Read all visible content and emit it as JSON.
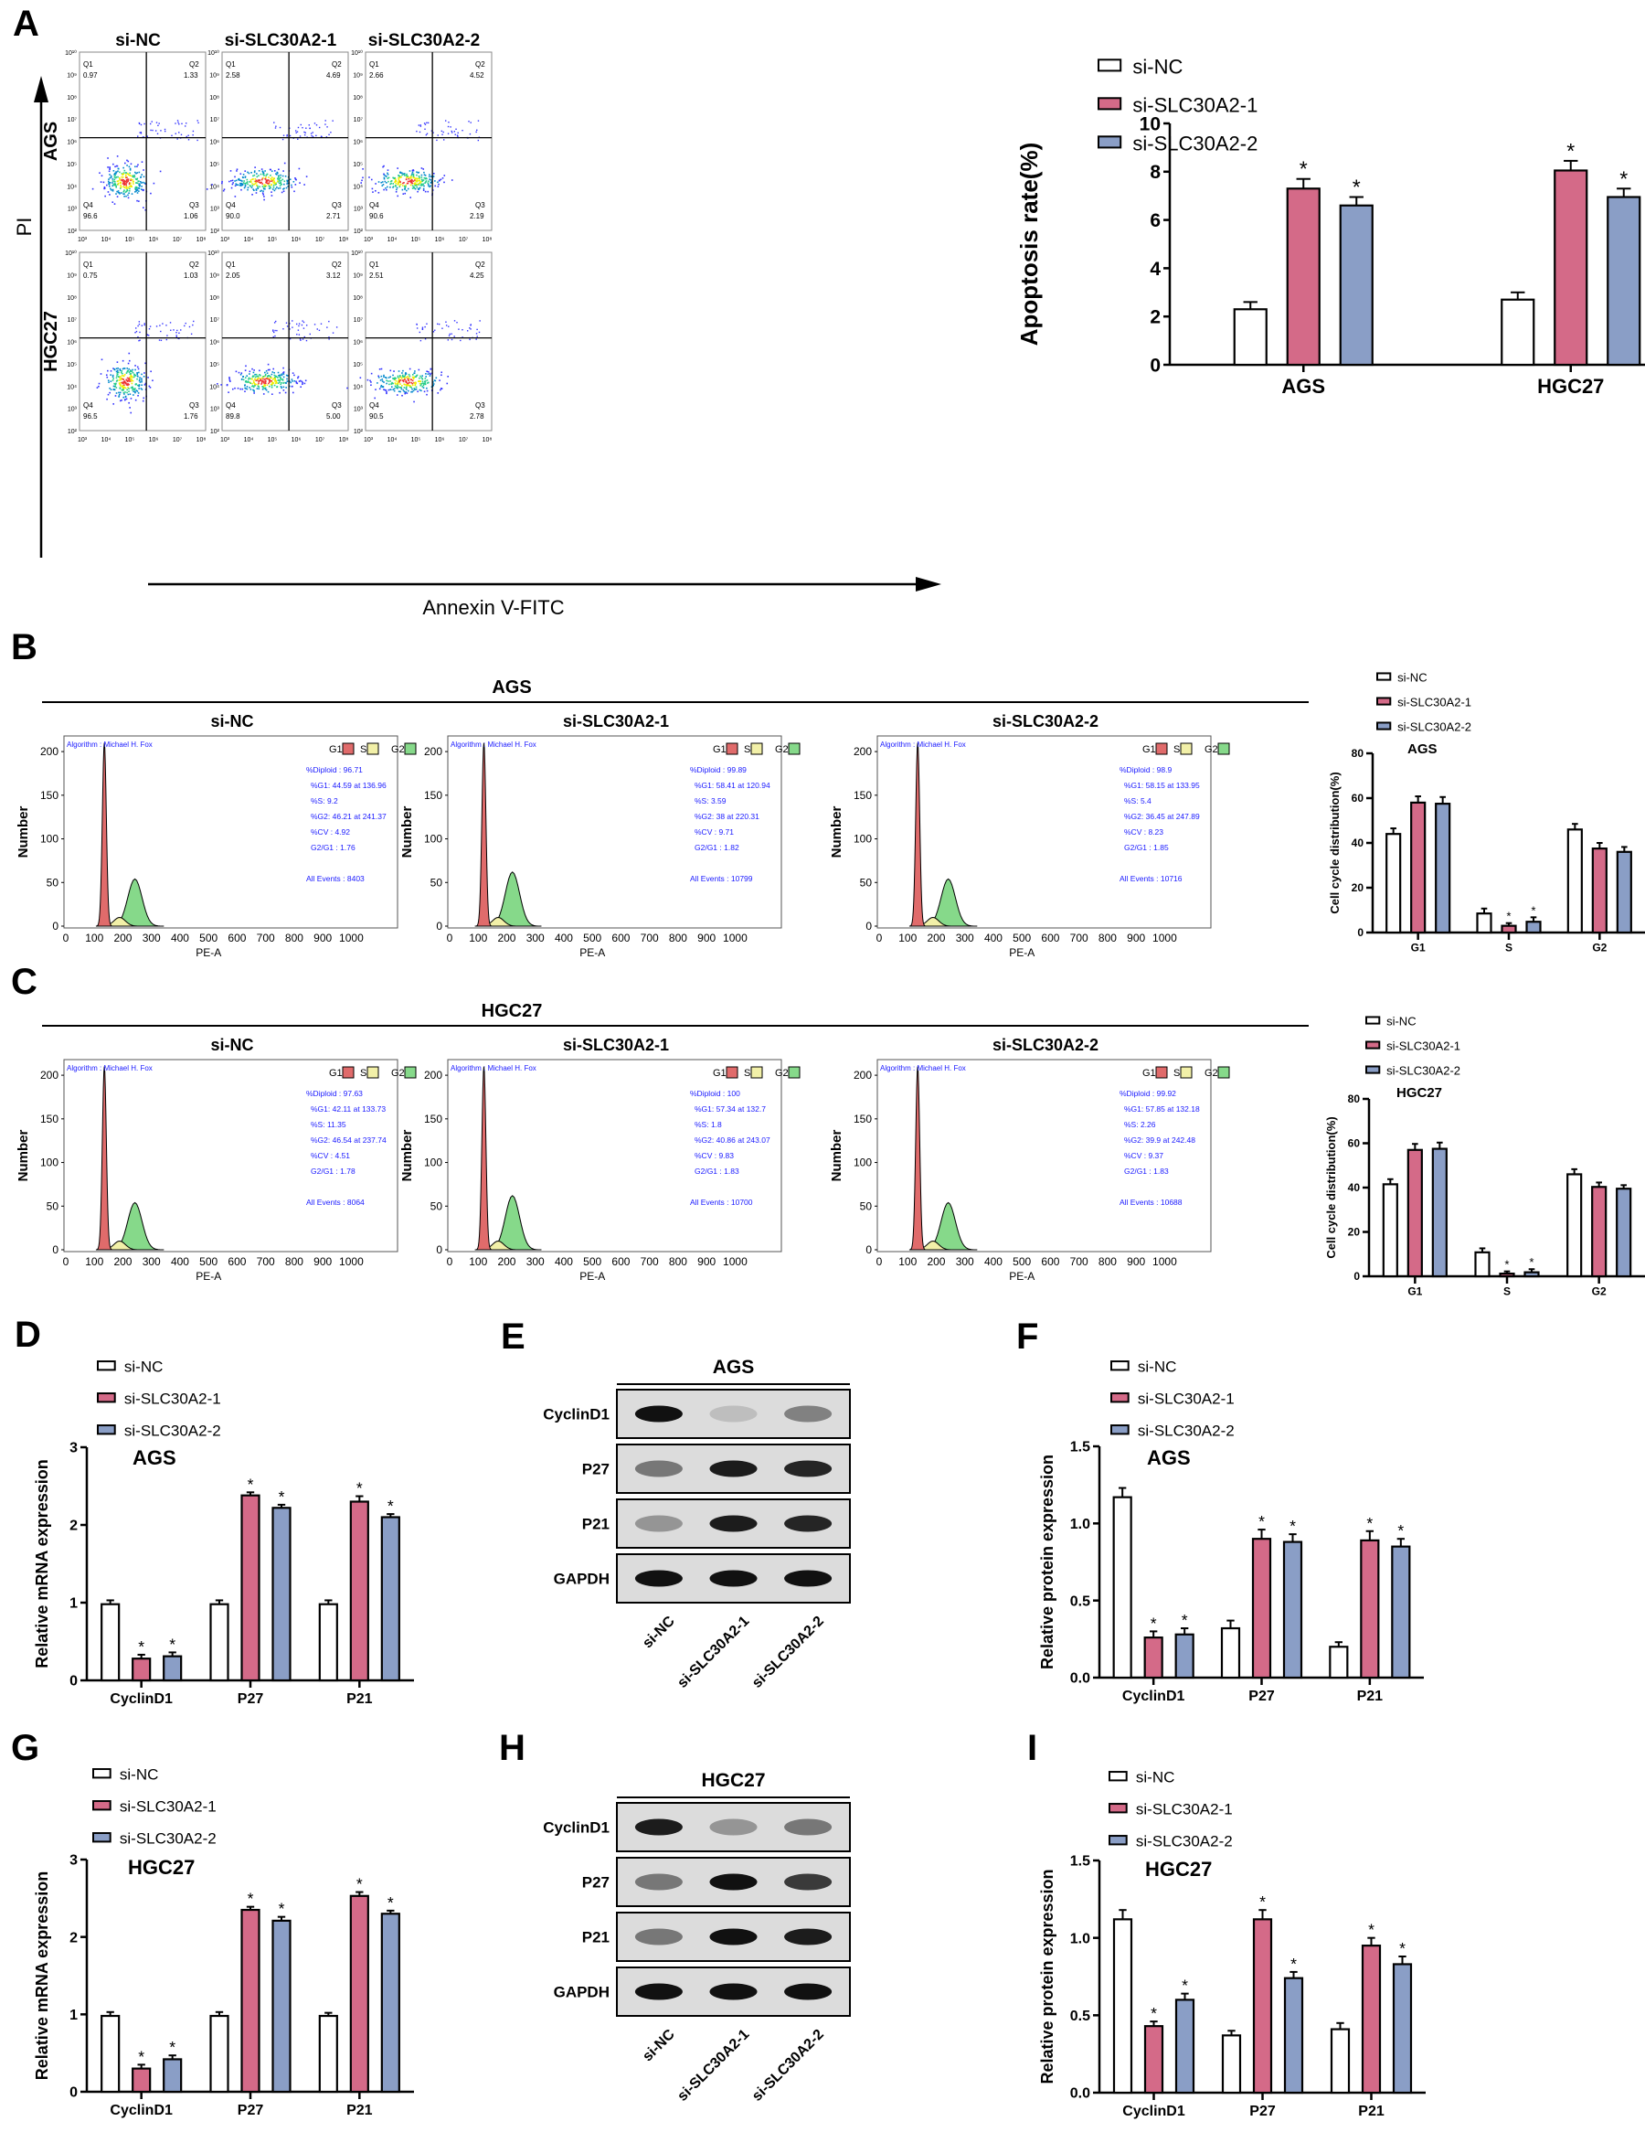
{
  "panels": {
    "A": "A",
    "B": "B",
    "C": "C",
    "D": "D",
    "E": "E",
    "F": "F",
    "G": "G",
    "H": "H",
    "I": "I"
  },
  "colors": {
    "si_nc": "#ffffff",
    "si_1": "#d46a88",
    "si_2": "#8a9ec6",
    "axis": "#000000",
    "g1": "#e06b6b",
    "s": "#f2f0a8",
    "g2": "#86d98a",
    "flow_text": "#1a1aff"
  },
  "groups": [
    "si-NC",
    "si-SLC30A2-1",
    "si-SLC30A2-2"
  ],
  "flow": {
    "y_label": "PI",
    "x_label": "Annexin V-FITC",
    "rows": [
      "AGS",
      "HGC27"
    ],
    "x_ticks": [
      "10³",
      "10⁴",
      "10⁵",
      "10⁶",
      "10⁷",
      "10⁸"
    ],
    "y_ticks": [
      "10¹⁰",
      "10⁹",
      "10⁸",
      "10⁷",
      "10⁶",
      "10⁵",
      "10⁴",
      "10³",
      "10²"
    ],
    "plots": [
      [
        {
          "q1": "0.97",
          "q2": "1.33",
          "q3": "1.06",
          "q4": "96.6"
        },
        {
          "q1": "2.58",
          "q2": "4.69",
          "q3": "2.71",
          "q4": "90.0"
        },
        {
          "q1": "2.66",
          "q2": "4.52",
          "q3": "2.19",
          "q4": "90.6"
        }
      ],
      [
        {
          "q1": "0.75",
          "q2": "1.03",
          "q3": "1.76",
          "q4": "96.5"
        },
        {
          "q1": "2.05",
          "q2": "3.12",
          "q3": "5.00",
          "q4": "89.8"
        },
        {
          "q1": "2.51",
          "q2": "4.25",
          "q3": "2.78",
          "q4": "90.5"
        }
      ]
    ],
    "quadrant_labels": {
      "q1": "Q1",
      "q2": "Q2",
      "q3": "Q3",
      "q4": "Q4"
    }
  },
  "cycle": {
    "algorithm": "Algorithm : Michael H. Fox",
    "y_label": "Number",
    "x_label": "PE-A",
    "x_ticks": [
      "0",
      "100",
      "200",
      "300",
      "400",
      "500",
      "600",
      "700",
      "800",
      "900",
      "1000"
    ],
    "y_ticks": [
      "0",
      "50",
      "100",
      "150",
      "200"
    ],
    "legend": [
      "G1",
      "S",
      "G2"
    ],
    "sections": [
      {
        "title": "AGS",
        "stats": [
          [
            "%Diploid : 96.71",
            "%G1: 44.59 at 136.96",
            "%S: 9.2",
            "%G2: 46.21 at 241.37",
            "%CV : 4.92",
            "G2/G1 : 1.76",
            "All Events : 8403"
          ],
          [
            "%Diploid : 99.89",
            "%G1: 58.41 at 120.94",
            "%S: 3.59",
            "%G2: 38 at 220.31",
            "%CV : 9.71",
            "G2/G1 : 1.82",
            "All Events : 10799"
          ],
          [
            "%Diploid : 98.9",
            "%G1: 58.15 at 133.95",
            "%S: 5.4",
            "%G2: 36.45 at 247.89",
            "%CV : 8.23",
            "G2/G1 : 1.85",
            "All Events : 10716"
          ]
        ]
      },
      {
        "title": "HGC27",
        "stats": [
          [
            "%Diploid : 97.63",
            "%G1: 42.11 at 133.73",
            "%S: 11.35",
            "%G2: 46.54 at 237.74",
            "%CV : 4.51",
            "G2/G1 : 1.78",
            "All Events : 8064"
          ],
          [
            "%Diploid : 100",
            "%G1: 57.34 at 132.7",
            "%S: 1.8",
            "%G2: 40.86 at 243.07",
            "%CV : 9.83",
            "G2/G1 : 1.83",
            "All Events : 10700"
          ],
          [
            "%Diploid : 99.92",
            "%G1: 57.85 at 132.18",
            "%S: 2.26",
            "%G2: 39.9 at 242.48",
            "%CV : 9.37",
            "G2/G1 : 1.83",
            "All Events : 10688"
          ]
        ]
      }
    ]
  },
  "western": [
    {
      "title": "AGS",
      "proteins": [
        "CyclinD1",
        "P27",
        "P21",
        "GAPDH"
      ],
      "band_intensity": [
        [
          1.0,
          0.15,
          0.45
        ],
        [
          0.5,
          0.95,
          0.9
        ],
        [
          0.35,
          0.95,
          0.9
        ],
        [
          1.0,
          1.0,
          1.0
        ]
      ]
    },
    {
      "title": "HGC27",
      "proteins": [
        "CyclinD1",
        "P27",
        "P21",
        "GAPDH"
      ],
      "band_intensity": [
        [
          0.95,
          0.35,
          0.5
        ],
        [
          0.5,
          1.0,
          0.8
        ],
        [
          0.5,
          1.0,
          0.95
        ],
        [
          1.0,
          1.0,
          1.0
        ]
      ]
    }
  ],
  "chart_data": [
    {
      "id": "A_bar",
      "type": "bar",
      "title": "",
      "xlabel": "",
      "ylabel": "Apoptosis rate(%)",
      "ylim": [
        0,
        10
      ],
      "yticks": [
        "0",
        "2",
        "4",
        "6",
        "8",
        "10"
      ],
      "ytick_values": [
        0,
        2,
        4,
        6,
        8,
        10
      ],
      "categories": [
        "AGS",
        "HGC27"
      ],
      "legend": "top-right",
      "series": [
        {
          "name": "si-NC",
          "values": [
            2.3,
            2.7
          ],
          "errors": [
            0.3,
            0.3
          ],
          "sig": [
            false,
            false
          ]
        },
        {
          "name": "si-SLC30A2-1",
          "values": [
            7.3,
            8.05
          ],
          "errors": [
            0.4,
            0.4
          ],
          "sig": [
            true,
            true
          ]
        },
        {
          "name": "si-SLC30A2-2",
          "values": [
            6.6,
            6.95
          ],
          "errors": [
            0.35,
            0.35
          ],
          "sig": [
            true,
            true
          ]
        }
      ]
    },
    {
      "id": "B_bar",
      "type": "bar",
      "title": "AGS",
      "ylabel": "Cell cycle distribution(%)",
      "ylim": [
        0,
        80
      ],
      "yticks": [
        "0",
        "20",
        "40",
        "60",
        "80"
      ],
      "ytick_values": [
        0,
        20,
        40,
        60,
        80
      ],
      "categories": [
        "G1",
        "S",
        "G2"
      ],
      "legend": "top",
      "series": [
        {
          "name": "si-NC",
          "values": [
            44,
            8.5,
            46
          ],
          "errors": [
            2.5,
            2.2,
            2.5
          ],
          "sig": [
            false,
            false,
            false
          ]
        },
        {
          "name": "si-SLC30A2-1",
          "values": [
            58,
            3,
            37.5
          ],
          "errors": [
            2.8,
            1.2,
            2.5
          ],
          "sig": [
            false,
            true,
            false
          ]
        },
        {
          "name": "si-SLC30A2-2",
          "values": [
            57.5,
            4.8,
            36
          ],
          "errors": [
            3,
            2,
            2.2
          ],
          "sig": [
            false,
            true,
            false
          ]
        }
      ]
    },
    {
      "id": "C_bar",
      "type": "bar",
      "title": "HGC27",
      "ylabel": "Cell cycle distribution(%)",
      "ylim": [
        0,
        80
      ],
      "yticks": [
        "0",
        "20",
        "40",
        "60",
        "80"
      ],
      "ytick_values": [
        0,
        20,
        40,
        60,
        80
      ],
      "categories": [
        "G1",
        "S",
        "G2"
      ],
      "legend": "top",
      "series": [
        {
          "name": "si-NC",
          "values": [
            41.5,
            10.8,
            46
          ],
          "errors": [
            2.3,
            1.8,
            2.3
          ],
          "sig": [
            false,
            false,
            false
          ]
        },
        {
          "name": "si-SLC30A2-1",
          "values": [
            57,
            1.2,
            40.3
          ],
          "errors": [
            2.7,
            1,
            2
          ],
          "sig": [
            false,
            true,
            false
          ]
        },
        {
          "name": "si-SLC30A2-2",
          "values": [
            57.5,
            1.8,
            39.5
          ],
          "errors": [
            2.8,
            1.4,
            1.6
          ],
          "sig": [
            false,
            true,
            false
          ]
        }
      ]
    },
    {
      "id": "D_bar",
      "type": "bar",
      "title": "AGS",
      "ylabel": "Relative mRNA expression",
      "ylim": [
        0,
        3
      ],
      "yticks": [
        "0",
        "1",
        "2",
        "3"
      ],
      "ytick_values": [
        0,
        1,
        2,
        3
      ],
      "categories": [
        "CyclinD1",
        "P27",
        "P21"
      ],
      "legend": "top",
      "series": [
        {
          "name": "si-NC",
          "values": [
            0.98,
            0.98,
            0.98
          ],
          "errors": [
            0.05,
            0.05,
            0.05
          ],
          "sig": [
            false,
            false,
            false
          ]
        },
        {
          "name": "si-SLC30A2-1",
          "values": [
            0.28,
            2.38,
            2.3
          ],
          "errors": [
            0.05,
            0.04,
            0.07
          ],
          "sig": [
            true,
            true,
            true
          ]
        },
        {
          "name": "si-SLC30A2-2",
          "values": [
            0.31,
            2.22,
            2.1
          ],
          "errors": [
            0.05,
            0.04,
            0.04
          ],
          "sig": [
            true,
            true,
            true
          ]
        }
      ]
    },
    {
      "id": "F_bar",
      "type": "bar",
      "title": "AGS",
      "ylabel": "Relative protein expression",
      "ylim": [
        0,
        1.5
      ],
      "yticks": [
        "0.0",
        "0.5",
        "1.0",
        "1.5"
      ],
      "ytick_values": [
        0,
        0.5,
        1,
        1.5
      ],
      "categories": [
        "CyclinD1",
        "P27",
        "P21"
      ],
      "legend": "top",
      "series": [
        {
          "name": "si-NC",
          "values": [
            1.17,
            0.32,
            0.2
          ],
          "errors": [
            0.06,
            0.05,
            0.03
          ],
          "sig": [
            false,
            false,
            false
          ]
        },
        {
          "name": "si-SLC30A2-1",
          "values": [
            0.26,
            0.9,
            0.89
          ],
          "errors": [
            0.04,
            0.06,
            0.06
          ],
          "sig": [
            true,
            true,
            true
          ]
        },
        {
          "name": "si-SLC30A2-2",
          "values": [
            0.28,
            0.88,
            0.85
          ],
          "errors": [
            0.04,
            0.05,
            0.05
          ],
          "sig": [
            true,
            true,
            true
          ]
        }
      ]
    },
    {
      "id": "G_bar",
      "type": "bar",
      "title": "HGC27",
      "ylabel": "Relative mRNA expression",
      "ylim": [
        0,
        3
      ],
      "yticks": [
        "0",
        "1",
        "2",
        "3"
      ],
      "ytick_values": [
        0,
        1,
        2,
        3
      ],
      "categories": [
        "CyclinD1",
        "P27",
        "P21"
      ],
      "legend": "top",
      "series": [
        {
          "name": "si-NC",
          "values": [
            0.98,
            0.98,
            0.98
          ],
          "errors": [
            0.05,
            0.05,
            0.04
          ],
          "sig": [
            false,
            false,
            false
          ]
        },
        {
          "name": "si-SLC30A2-1",
          "values": [
            0.3,
            2.35,
            2.53
          ],
          "errors": [
            0.05,
            0.04,
            0.05
          ],
          "sig": [
            true,
            true,
            true
          ]
        },
        {
          "name": "si-SLC30A2-2",
          "values": [
            0.42,
            2.21,
            2.3
          ],
          "errors": [
            0.05,
            0.05,
            0.04
          ],
          "sig": [
            true,
            true,
            true
          ]
        }
      ]
    },
    {
      "id": "I_bar",
      "type": "bar",
      "title": "HGC27",
      "ylabel": "Relative protein expression",
      "ylim": [
        0,
        1.5
      ],
      "yticks": [
        "0.0",
        "0.5",
        "1.0",
        "1.5"
      ],
      "ytick_values": [
        0,
        0.5,
        1,
        1.5
      ],
      "categories": [
        "CyclinD1",
        "P27",
        "P21"
      ],
      "legend": "top",
      "series": [
        {
          "name": "si-NC",
          "values": [
            1.12,
            0.37,
            0.41
          ],
          "errors": [
            0.06,
            0.03,
            0.04
          ],
          "sig": [
            false,
            false,
            false
          ]
        },
        {
          "name": "si-SLC30A2-1",
          "values": [
            0.43,
            1.12,
            0.95
          ],
          "errors": [
            0.03,
            0.06,
            0.05
          ],
          "sig": [
            true,
            true,
            true
          ]
        },
        {
          "name": "si-SLC30A2-2",
          "values": [
            0.6,
            0.74,
            0.83
          ],
          "errors": [
            0.04,
            0.04,
            0.05
          ],
          "sig": [
            true,
            true,
            true
          ]
        }
      ]
    }
  ]
}
